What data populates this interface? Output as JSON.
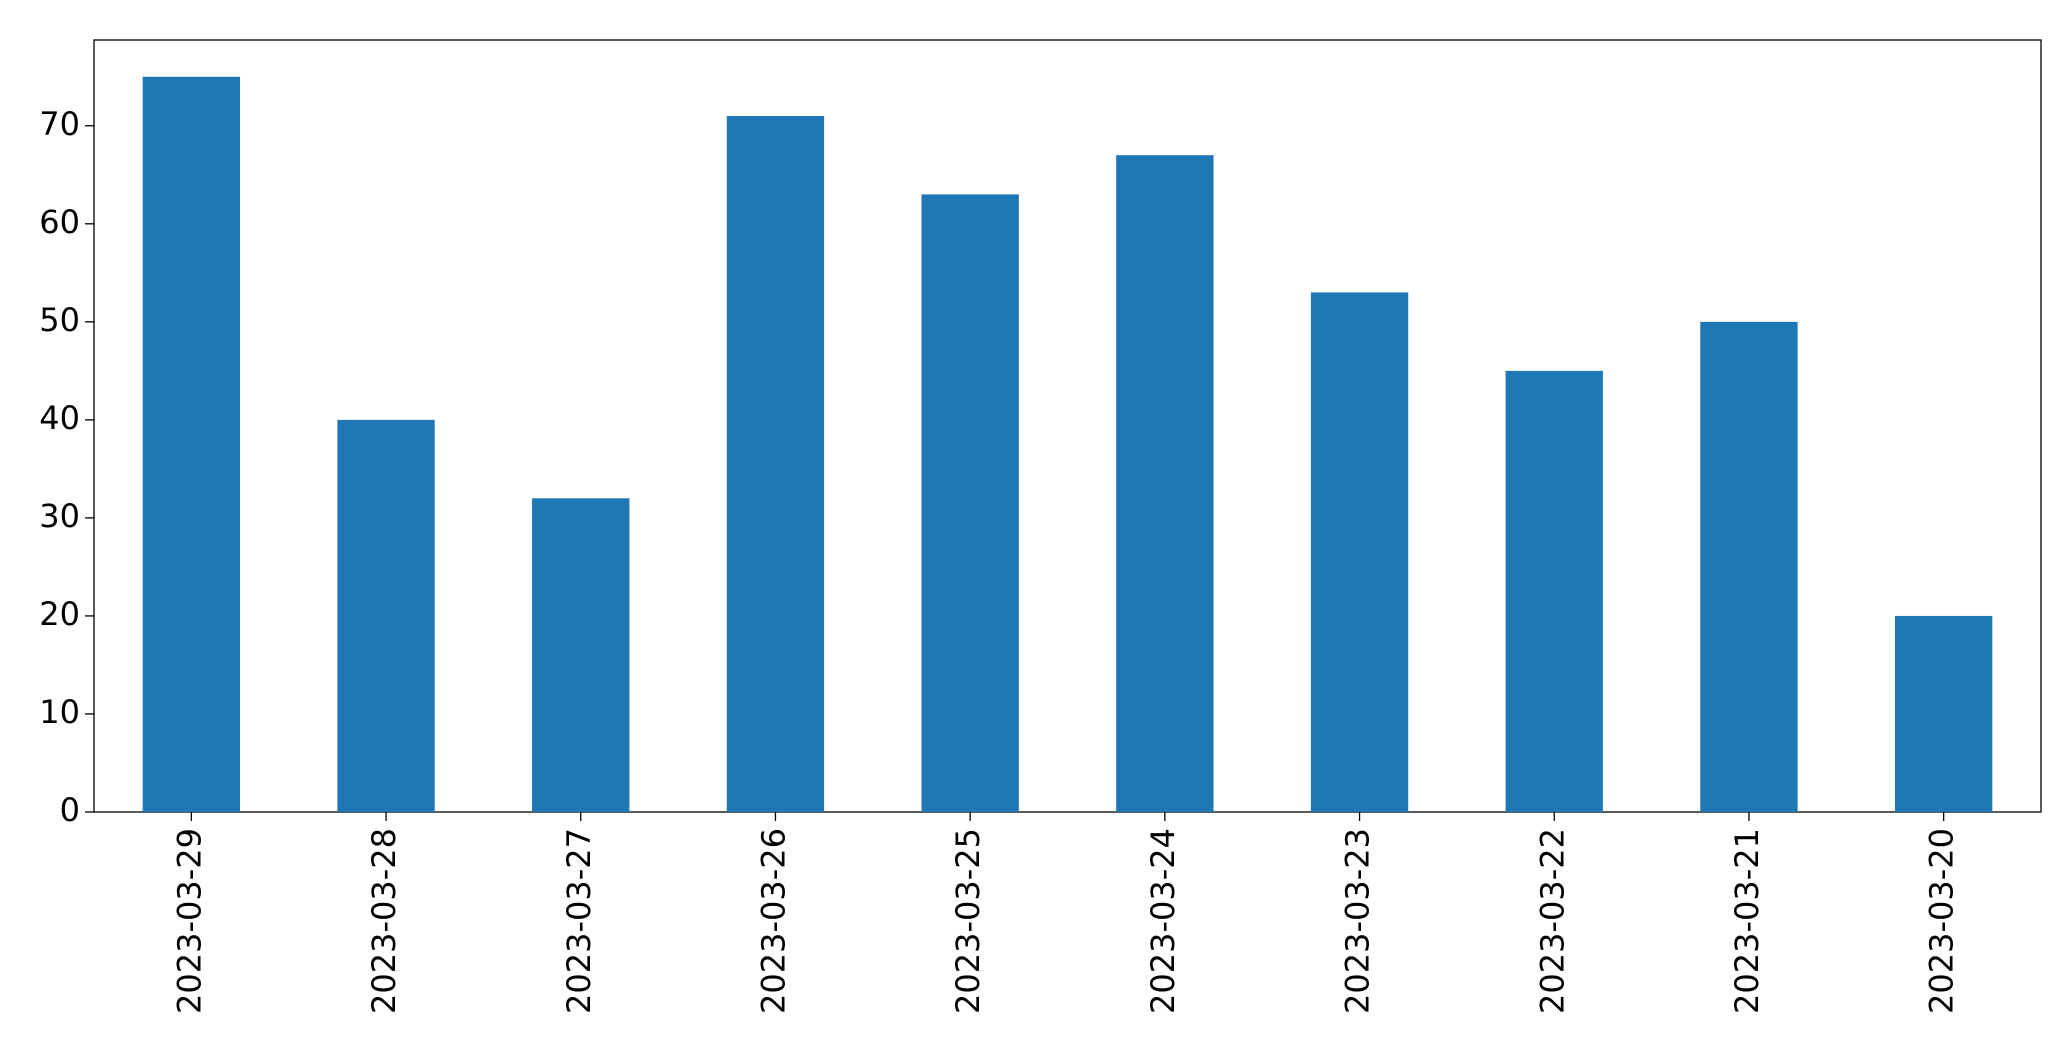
{
  "chart_data": {
    "type": "bar",
    "categories": [
      "2023-03-29",
      "2023-03-28",
      "2023-03-27",
      "2023-03-26",
      "2023-03-25",
      "2023-03-24",
      "2023-03-23",
      "2023-03-22",
      "2023-03-21",
      "2023-03-20"
    ],
    "values": [
      75,
      40,
      32,
      71,
      63,
      67,
      53,
      45,
      50,
      20
    ],
    "color": "#1f77b4",
    "ylim": [
      0,
      78.75
    ],
    "yticks": [
      0,
      10,
      20,
      30,
      40,
      50,
      60,
      70
    ],
    "grid": false
  }
}
